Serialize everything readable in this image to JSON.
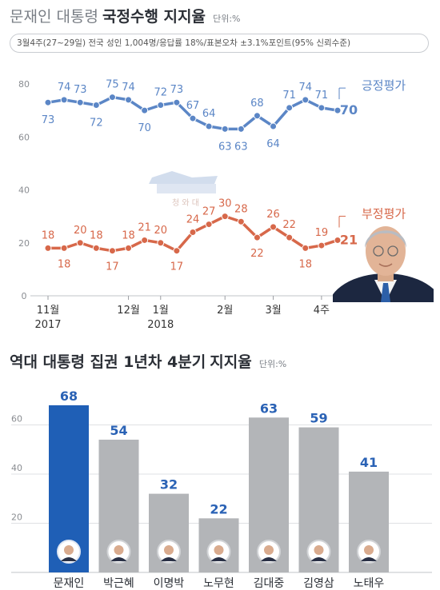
{
  "header": {
    "title_light": "문재인 대통령",
    "title_bold": "국정수행 지지율",
    "unit": "단위:%",
    "survey_info": "3월4주(27~29일) 전국 성인 1,004명/응답률 18%/표본오차 ±3.1%포인트(95% 신뢰수준)"
  },
  "watermark": {
    "text": "청 와 대"
  },
  "bar_section": {
    "title_light": "역대 대통령 집권 1년차 4분기",
    "title_bold": "지지율",
    "unit": "단위:%"
  },
  "colors": {
    "positive": "#5b86c6",
    "negative": "#d7684a",
    "bar_highlight": "#1f5fb6",
    "bar_default": "#b3b5b8",
    "value_label": "#2a62b5"
  },
  "chart_data": [
    {
      "type": "line",
      "title": "문재인 대통령 국정수행 지지율",
      "ylim": [
        0,
        80
      ],
      "yticks": [
        0,
        20,
        40,
        60,
        80
      ],
      "grid": false,
      "x_tick_labels": [
        {
          "index": 0,
          "label": "11월",
          "sub": "2017"
        },
        {
          "index": 5,
          "label": "12월",
          "sub": ""
        },
        {
          "index": 7,
          "label": "1월",
          "sub": "2018"
        },
        {
          "index": 11,
          "label": "2월",
          "sub": ""
        },
        {
          "index": 14,
          "label": "3월",
          "sub": ""
        },
        {
          "index": 17,
          "label": "4주",
          "sub": ""
        }
      ],
      "series": [
        {
          "name": "긍정평가",
          "values": [
            73,
            74,
            73,
            72,
            75,
            74,
            70,
            72,
            73,
            67,
            64,
            63,
            63,
            68,
            64,
            71,
            74,
            71,
            70
          ]
        },
        {
          "name": "부정평가",
          "values": [
            18,
            18,
            20,
            18,
            17,
            18,
            21,
            20,
            17,
            24,
            27,
            30,
            28,
            22,
            26,
            22,
            18,
            19,
            21
          ]
        }
      ]
    },
    {
      "type": "bar",
      "title": "역대 대통령 집권 1년차 4분기 지지율",
      "categories": [
        "문재인",
        "박근혜",
        "이명박",
        "노무현",
        "김대중",
        "김영삼",
        "노태우"
      ],
      "values": [
        68,
        54,
        32,
        22,
        63,
        59,
        41
      ],
      "highlight": "문재인",
      "ylim": [
        0,
        80
      ],
      "yticks": [
        20,
        40,
        60
      ]
    }
  ]
}
